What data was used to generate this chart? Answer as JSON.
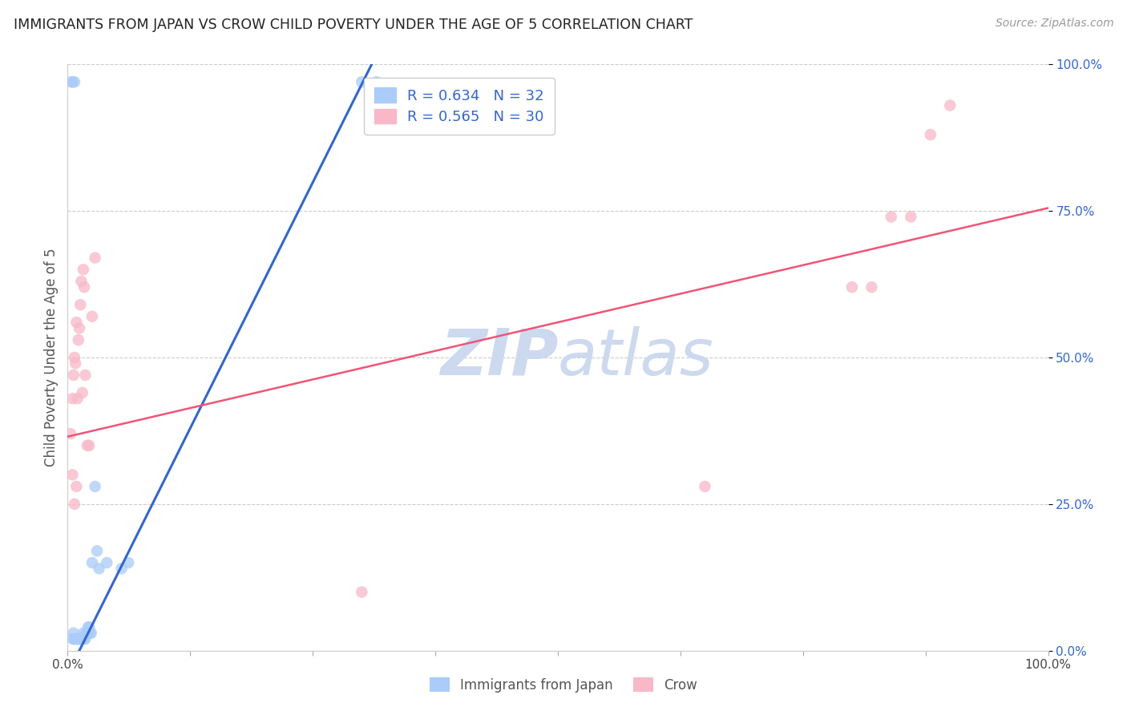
{
  "title": "IMMIGRANTS FROM JAPAN VS CROW CHILD POVERTY UNDER THE AGE OF 5 CORRELATION CHART",
  "source": "Source: ZipAtlas.com",
  "ylabel": "Child Poverty Under the Age of 5",
  "xlim": [
    0,
    1
  ],
  "ylim": [
    0,
    1
  ],
  "ytick_positions": [
    0.0,
    0.25,
    0.5,
    0.75,
    1.0
  ],
  "grid_color": "#cccccc",
  "background_color": "#ffffff",
  "watermark_text": "ZIPatlas",
  "watermark_color": "#ccd9ee",
  "blue_color": "#aaccf8",
  "pink_color": "#f8b8c8",
  "blue_line_color": "#3366cc",
  "pink_line_color": "#ee5577",
  "legend_blue_r": "R = 0.634",
  "legend_blue_n": "N = 32",
  "legend_pink_r": "R = 0.565",
  "legend_pink_n": "N = 30",
  "blue_scatter": [
    [
      0.004,
      0.97
    ],
    [
      0.007,
      0.97
    ],
    [
      0.005,
      0.97
    ],
    [
      0.3,
      0.97
    ],
    [
      0.315,
      0.97
    ],
    [
      0.005,
      0.02
    ],
    [
      0.007,
      0.02
    ],
    [
      0.008,
      0.02
    ],
    [
      0.009,
      0.02
    ],
    [
      0.01,
      0.02
    ],
    [
      0.011,
      0.02
    ],
    [
      0.012,
      0.02
    ],
    [
      0.013,
      0.02
    ],
    [
      0.014,
      0.02
    ],
    [
      0.015,
      0.02
    ],
    [
      0.016,
      0.03
    ],
    [
      0.017,
      0.02
    ],
    [
      0.018,
      0.02
    ],
    [
      0.019,
      0.03
    ],
    [
      0.02,
      0.03
    ],
    [
      0.021,
      0.04
    ],
    [
      0.022,
      0.04
    ],
    [
      0.024,
      0.03
    ],
    [
      0.025,
      0.15
    ],
    [
      0.028,
      0.28
    ],
    [
      0.03,
      0.17
    ],
    [
      0.032,
      0.14
    ],
    [
      0.04,
      0.15
    ],
    [
      0.055,
      0.14
    ],
    [
      0.062,
      0.15
    ],
    [
      0.006,
      0.03
    ],
    [
      0.023,
      0.03
    ]
  ],
  "pink_scatter": [
    [
      0.003,
      0.37
    ],
    [
      0.005,
      0.43
    ],
    [
      0.006,
      0.47
    ],
    [
      0.007,
      0.5
    ],
    [
      0.008,
      0.49
    ],
    [
      0.009,
      0.56
    ],
    [
      0.01,
      0.43
    ],
    [
      0.011,
      0.53
    ],
    [
      0.012,
      0.55
    ],
    [
      0.013,
      0.59
    ],
    [
      0.014,
      0.63
    ],
    [
      0.015,
      0.44
    ],
    [
      0.016,
      0.65
    ],
    [
      0.017,
      0.62
    ],
    [
      0.018,
      0.47
    ],
    [
      0.02,
      0.35
    ],
    [
      0.022,
      0.35
    ],
    [
      0.025,
      0.57
    ],
    [
      0.028,
      0.67
    ],
    [
      0.3,
      0.1
    ],
    [
      0.65,
      0.28
    ],
    [
      0.8,
      0.62
    ],
    [
      0.82,
      0.62
    ],
    [
      0.84,
      0.74
    ],
    [
      0.86,
      0.74
    ],
    [
      0.88,
      0.88
    ],
    [
      0.9,
      0.93
    ],
    [
      0.005,
      0.3
    ],
    [
      0.007,
      0.25
    ],
    [
      0.009,
      0.28
    ]
  ],
  "blue_line_x": [
    0.0,
    0.322
  ],
  "blue_line_y": [
    -0.04,
    1.04
  ],
  "pink_line_x": [
    0.0,
    1.0
  ],
  "pink_line_y": [
    0.365,
    0.755
  ]
}
